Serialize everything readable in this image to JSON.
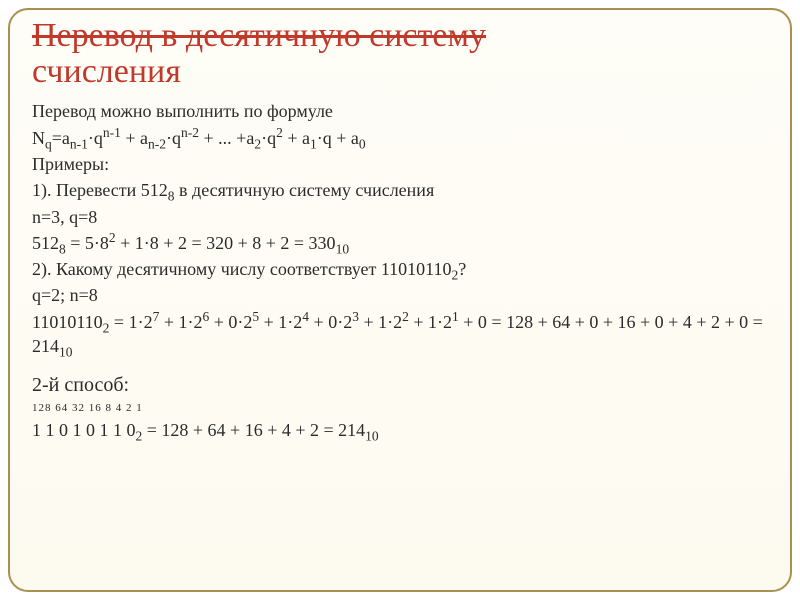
{
  "title": {
    "line1": "Перевод в десятичную систему",
    "line2": "счисления"
  },
  "intro": "Перевод можно выполнить по формуле",
  "formula": "N<sub>q</sub>=a<sub>n-1</sub>·q<sup>n-1</sup> + a<sub>n-2</sub>·q<sup>n-2</sup> + ... +a<sub>2</sub>·q<sup>2</sup> + a<sub>1</sub>·q + a<sub>0</sub>",
  "examples_label": "Примеры:",
  "ex1": {
    "task": "1). Перевести 512<sub>8</sub>  в десятичную систему счисления",
    "params": "n=3, q=8",
    "calc": "512<sub>8</sub> = 5·8<sup>2</sup> + 1·8 + 2 = 320 + 8 + 2 = 330<sub>10</sub>"
  },
  "ex2": {
    "task": "2). Какому десятичному числу соответствует 11010110<sub>2</sub>?",
    "params": "q=2; n=8",
    "calc": "11010110<sub>2</sub> = 1·2<sup>7</sup> + 1·2<sup>6</sup> + 0·2<sup>5</sup> + 1·2<sup>4</sup> + 0·2<sup>3</sup> + 1·2<sup>2</sup> + 1·2<sup>1</sup> + 0 = 128 + 64 + 0 + 16 + 0 + 4 + 2 + 0 = 214<sub>10</sub>"
  },
  "method2": {
    "label": "2-й способ:",
    "weights": "128 64 32 16  8  4  2  1",
    "bits": "   1  1  0  1  0  1  1  0<sub>2</sub> = 128 + 64 + 16 + 4 + 2 = 214<sub>10</sub>"
  },
  "colors": {
    "title": "#c0392b",
    "border": "#a89050",
    "text": "#2b2b2b",
    "bg_top": "#fefdf7",
    "bg_bottom": "#fdfaf0"
  },
  "fontsize": {
    "title": 34,
    "body": 18,
    "weights_row": 11
  }
}
